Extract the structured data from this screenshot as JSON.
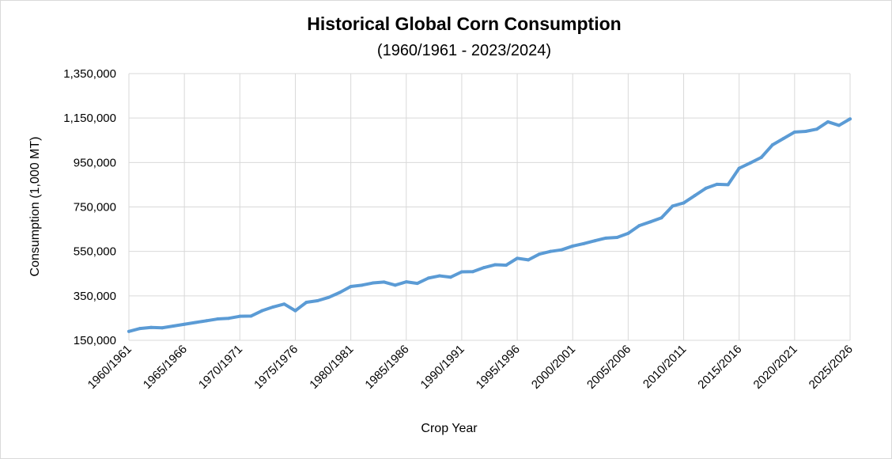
{
  "chart_data": {
    "type": "line",
    "title": "Historical Global Corn Consumption",
    "subtitle": "(1960/1961 - 2023/2024)",
    "xlabel": "Crop Year",
    "ylabel": "Consumption (1,000 MT)",
    "ylim": [
      150000,
      1350000
    ],
    "yticks": [
      150000,
      350000,
      550000,
      750000,
      950000,
      1150000,
      1350000
    ],
    "ytick_labels": [
      "150,000",
      "350,000",
      "550,000",
      "750,000",
      "950,000",
      "1,150,000",
      "1,350,000"
    ],
    "xticks": [
      "1960/1961",
      "1965/1966",
      "1970/1971",
      "1975/1976",
      "1980/1981",
      "1985/1986",
      "1990/1991",
      "1995/1996",
      "2000/2001",
      "2005/2006",
      "2010/2011",
      "2015/2016",
      "2020/2021",
      "2025/2026"
    ],
    "grid": true,
    "line_color": "#5b9bd5",
    "series": [
      {
        "name": "",
        "x": [
          "1960/1961",
          "1961/1962",
          "1962/1963",
          "1963/1964",
          "1964/1965",
          "1965/1966",
          "1966/1967",
          "1967/1968",
          "1968/1969",
          "1969/1970",
          "1970/1971",
          "1971/1972",
          "1972/1973",
          "1973/1974",
          "1974/1975",
          "1975/1976",
          "1976/1977",
          "1977/1978",
          "1978/1979",
          "1979/1980",
          "1980/1981",
          "1981/1982",
          "1982/1983",
          "1983/1984",
          "1984/1985",
          "1985/1986",
          "1986/1987",
          "1987/1988",
          "1988/1989",
          "1989/1990",
          "1990/1991",
          "1991/1992",
          "1992/1993",
          "1993/1994",
          "1994/1995",
          "1995/1996",
          "1996/1997",
          "1997/1998",
          "1998/1999",
          "1999/2000",
          "2000/2001",
          "2001/2002",
          "2002/2003",
          "2003/2004",
          "2004/2005",
          "2005/2006",
          "2006/2007",
          "2007/2008",
          "2008/2009",
          "2009/2010",
          "2010/2011",
          "2011/2012",
          "2012/2013",
          "2013/2014",
          "2014/2015",
          "2015/2016",
          "2016/2017",
          "2017/2018",
          "2018/2019",
          "2019/2020",
          "2020/2021",
          "2021/2022",
          "2022/2023",
          "2023/2024",
          "2024/2025",
          "2025/2026"
        ],
        "values": [
          190000,
          203000,
          208000,
          206000,
          214000,
          222000,
          230000,
          238000,
          246000,
          249000,
          258000,
          259000,
          283000,
          300000,
          313000,
          283000,
          321000,
          328000,
          343000,
          365000,
          392000,
          398000,
          408000,
          412000,
          398000,
          413000,
          406000,
          430000,
          440000,
          434000,
          458000,
          459000,
          477000,
          490000,
          488000,
          519000,
          512000,
          538000,
          550000,
          557000,
          574000,
          585000,
          598000,
          610000,
          613000,
          631000,
          666000,
          683000,
          701000,
          754000,
          768000,
          801000,
          834000,
          852000,
          850000,
          924000,
          948000,
          973000,
          1029000,
          1058000,
          1087000,
          1090000,
          1100000,
          1133000,
          1117000,
          1146000
        ]
      }
    ]
  }
}
